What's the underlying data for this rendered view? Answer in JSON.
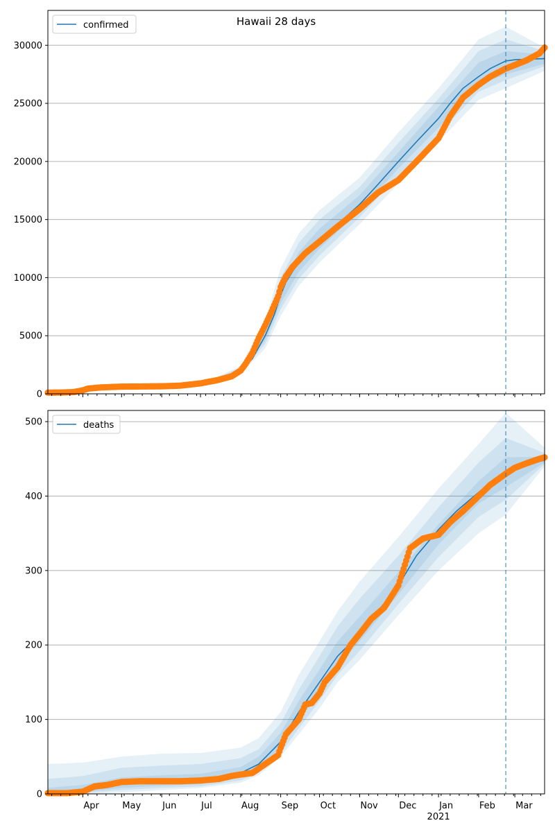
{
  "figure": {
    "title": "Hawaii 28 days"
  },
  "colors": {
    "model_line": "#1f77b4",
    "observed": "#ff7f0e",
    "band": "#1f77b4",
    "grid": "#b0b0b0",
    "forecast_marker": "#1f77b4"
  },
  "chart_data": [
    {
      "type": "line",
      "legend_label": "confirmed",
      "legend_position": "top-left",
      "grid": "horizontal",
      "ylim": [
        0,
        33000
      ],
      "yticks": [
        0,
        5000,
        10000,
        15000,
        20000,
        25000,
        30000
      ],
      "xlim": [
        "2020-03-05",
        "2021-03-24"
      ],
      "forecast_start": "2021-02-22",
      "model": {
        "x": [
          "2020-03-05",
          "2020-04-01",
          "2020-05-01",
          "2020-06-01",
          "2020-07-01",
          "2020-07-15",
          "2020-08-01",
          "2020-08-10",
          "2020-08-20",
          "2020-08-27",
          "2020-09-01",
          "2020-09-05",
          "2020-09-10",
          "2020-09-15",
          "2020-09-20",
          "2020-10-01",
          "2020-10-15",
          "2020-11-01",
          "2020-11-15",
          "2020-12-01",
          "2020-12-15",
          "2021-01-01",
          "2021-01-10",
          "2021-01-20",
          "2021-02-01",
          "2021-02-10",
          "2021-02-22",
          "2021-03-01",
          "2021-03-10",
          "2021-03-24"
        ],
        "y": [
          0,
          300,
          600,
          650,
          950,
          1300,
          2000,
          3000,
          5000,
          6800,
          8500,
          9600,
          10500,
          11300,
          12000,
          13300,
          14600,
          16300,
          18000,
          20000,
          21700,
          23700,
          25000,
          26300,
          27300,
          28000,
          28650,
          28750,
          28800,
          28850
        ]
      },
      "bands": [
        {
          "x": [
            "2020-07-15",
            "2020-08-01",
            "2020-08-20",
            "2020-09-01",
            "2020-09-15",
            "2020-10-01",
            "2020-11-01",
            "2020-12-01",
            "2021-01-01",
            "2021-02-01",
            "2021-02-22",
            "2021-03-24"
          ],
          "lower": [
            1100,
            1700,
            3900,
            6700,
            9300,
            11300,
            14600,
            18100,
            21700,
            25300,
            26300,
            27800
          ],
          "upper": [
            1500,
            2400,
            6300,
            10800,
            13800,
            15800,
            18600,
            22500,
            26300,
            30500,
            31600,
            29800
          ]
        },
        {
          "x": [
            "2020-07-15",
            "2020-08-01",
            "2020-08-20",
            "2020-09-01",
            "2020-09-15",
            "2020-10-01",
            "2020-11-01",
            "2020-12-01",
            "2021-01-01",
            "2021-02-01",
            "2021-02-22",
            "2021-03-24"
          ],
          "lower": [
            1150,
            1800,
            4300,
            7300,
            9900,
            11900,
            15200,
            18800,
            22400,
            26000,
            27000,
            28200
          ],
          "upper": [
            1450,
            2250,
            5800,
            10000,
            13000,
            15000,
            17800,
            21600,
            25400,
            29500,
            30500,
            29500
          ]
        },
        {
          "x": [
            "2020-07-15",
            "2020-08-01",
            "2020-08-20",
            "2020-09-01",
            "2020-09-15",
            "2020-10-01",
            "2020-11-01",
            "2020-12-01",
            "2021-01-01",
            "2021-02-01",
            "2021-02-22",
            "2021-03-24"
          ],
          "lower": [
            1200,
            1900,
            4600,
            7800,
            10500,
            12500,
            15700,
            19400,
            22900,
            26600,
            27500,
            28400
          ],
          "upper": [
            1400,
            2100,
            5400,
            9300,
            12200,
            14200,
            17100,
            20800,
            24700,
            28500,
            29500,
            29200
          ]
        }
      ],
      "observed": {
        "x": [
          "2020-03-05",
          "2020-03-15",
          "2020-03-25",
          "2020-04-01",
          "2020-04-05",
          "2020-04-15",
          "2020-05-01",
          "2020-05-15",
          "2020-06-01",
          "2020-06-15",
          "2020-07-01",
          "2020-07-15",
          "2020-07-25",
          "2020-08-01",
          "2020-08-05",
          "2020-08-10",
          "2020-08-15",
          "2020-08-20",
          "2020-08-25",
          "2020-08-30",
          "2020-09-01",
          "2020-09-05",
          "2020-09-10",
          "2020-09-15",
          "2020-09-20",
          "2020-10-01",
          "2020-10-15",
          "2020-11-01",
          "2020-11-15",
          "2020-12-01",
          "2020-12-15",
          "2021-01-01",
          "2021-01-10",
          "2021-01-20",
          "2021-02-01",
          "2021-02-10",
          "2021-02-22",
          "2021-03-01",
          "2021-03-10",
          "2021-03-20",
          "2021-03-24"
        ],
        "y": [
          100,
          110,
          150,
          300,
          450,
          550,
          620,
          630,
          650,
          700,
          900,
          1200,
          1500,
          2000,
          2600,
          3500,
          4800,
          5900,
          7100,
          8400,
          9200,
          10100,
          10900,
          11500,
          12100,
          13100,
          14400,
          15900,
          17300,
          18400,
          20000,
          22000,
          23900,
          25500,
          26600,
          27300,
          28000,
          28300,
          28700,
          29300,
          29800
        ]
      }
    },
    {
      "type": "line",
      "legend_label": "deaths",
      "legend_position": "top-left",
      "grid": "horizontal",
      "ylim": [
        0,
        515
      ],
      "yticks": [
        0,
        100,
        200,
        300,
        400,
        500
      ],
      "xlim": [
        "2020-03-05",
        "2021-03-24"
      ],
      "xtick_labels": [
        {
          "date": "2020-04-01",
          "label": "Apr"
        },
        {
          "date": "2020-05-01",
          "label": "May"
        },
        {
          "date": "2020-06-01",
          "label": "Jun"
        },
        {
          "date": "2020-07-01",
          "label": "Jul"
        },
        {
          "date": "2020-08-01",
          "label": "Aug"
        },
        {
          "date": "2020-09-01",
          "label": "Sep"
        },
        {
          "date": "2020-10-01",
          "label": "Oct"
        },
        {
          "date": "2020-11-01",
          "label": "Nov"
        },
        {
          "date": "2020-12-01",
          "label": "Dec"
        },
        {
          "date": "2021-01-01",
          "label": "Jan"
        },
        {
          "date": "2021-02-01",
          "label": "Feb"
        },
        {
          "date": "2021-03-01",
          "label": "Mar"
        }
      ],
      "year_label": {
        "date": "2021-01-01",
        "label": "2021"
      },
      "forecast_start": "2021-02-22",
      "model": {
        "x": [
          "2020-03-05",
          "2020-04-01",
          "2020-04-15",
          "2020-05-01",
          "2020-06-01",
          "2020-07-01",
          "2020-07-15",
          "2020-08-01",
          "2020-08-15",
          "2020-09-01",
          "2020-09-15",
          "2020-10-01",
          "2020-10-15",
          "2020-11-01",
          "2020-11-15",
          "2020-12-01",
          "2020-12-15",
          "2021-01-01",
          "2021-01-15",
          "2021-02-01",
          "2021-02-15",
          "2021-02-22",
          "2021-03-01",
          "2021-03-10",
          "2021-03-24"
        ],
        "y": [
          0,
          3,
          9,
          14,
          16,
          18,
          20,
          28,
          40,
          70,
          110,
          150,
          185,
          215,
          245,
          280,
          320,
          355,
          380,
          405,
          425,
          430,
          437,
          443,
          448
        ]
      },
      "bands": [
        {
          "x": [
            "2020-03-05",
            "2020-04-01",
            "2020-05-01",
            "2020-06-01",
            "2020-07-01",
            "2020-08-01",
            "2020-08-15",
            "2020-09-01",
            "2020-09-15",
            "2020-10-01",
            "2020-10-15",
            "2020-11-01",
            "2020-12-01",
            "2021-01-01",
            "2021-02-01",
            "2021-02-22",
            "2021-03-24"
          ],
          "lower": [
            0,
            0,
            2,
            5,
            8,
            15,
            25,
            50,
            80,
            115,
            150,
            180,
            240,
            300,
            350,
            375,
            440
          ],
          "upper": [
            40,
            42,
            50,
            54,
            55,
            62,
            75,
            110,
            160,
            205,
            245,
            285,
            345,
            410,
            470,
            512,
            465
          ]
        },
        {
          "x": [
            "2020-03-05",
            "2020-04-01",
            "2020-05-01",
            "2020-06-01",
            "2020-07-01",
            "2020-08-01",
            "2020-08-15",
            "2020-09-01",
            "2020-09-15",
            "2020-10-01",
            "2020-10-15",
            "2020-11-01",
            "2020-12-01",
            "2021-01-01",
            "2021-02-01",
            "2021-02-22",
            "2021-03-24"
          ],
          "lower": [
            0,
            1,
            5,
            8,
            10,
            18,
            28,
            55,
            88,
            125,
            160,
            192,
            255,
            318,
            372,
            395,
            443
          ],
          "upper": [
            20,
            24,
            35,
            38,
            40,
            48,
            60,
            95,
            140,
            185,
            225,
            262,
            320,
            385,
            445,
            478,
            458
          ]
        },
        {
          "x": [
            "2020-03-05",
            "2020-04-01",
            "2020-05-01",
            "2020-06-01",
            "2020-07-01",
            "2020-08-01",
            "2020-08-15",
            "2020-09-01",
            "2020-09-15",
            "2020-10-01",
            "2020-10-15",
            "2020-11-01",
            "2020-12-01",
            "2021-01-01",
            "2021-02-01",
            "2021-02-22",
            "2021-03-24"
          ],
          "lower": [
            0,
            2,
            8,
            11,
            13,
            22,
            33,
            62,
            98,
            137,
            172,
            205,
            268,
            335,
            390,
            412,
            445
          ],
          "upper": [
            8,
            12,
            22,
            25,
            27,
            36,
            50,
            82,
            125,
            167,
            205,
            238,
            298,
            362,
            420,
            452,
            453
          ]
        }
      ],
      "observed": {
        "x": [
          "2020-03-05",
          "2020-03-20",
          "2020-04-01",
          "2020-04-10",
          "2020-04-20",
          "2020-05-01",
          "2020-05-15",
          "2020-06-01",
          "2020-06-15",
          "2020-07-01",
          "2020-07-15",
          "2020-07-25",
          "2020-08-01",
          "2020-08-10",
          "2020-08-20",
          "2020-08-30",
          "2020-09-01",
          "2020-09-05",
          "2020-09-10",
          "2020-09-15",
          "2020-09-20",
          "2020-09-25",
          "2020-10-01",
          "2020-10-05",
          "2020-10-10",
          "2020-10-15",
          "2020-10-20",
          "2020-10-25",
          "2020-11-01",
          "2020-11-10",
          "2020-11-20",
          "2020-12-01",
          "2020-12-10",
          "2020-12-20",
          "2021-01-01",
          "2021-01-10",
          "2021-01-20",
          "2021-02-01",
          "2021-02-10",
          "2021-02-22",
          "2021-03-01",
          "2021-03-10",
          "2021-03-20",
          "2021-03-24"
        ],
        "y": [
          1,
          1,
          3,
          10,
          12,
          16,
          17,
          17,
          17,
          18,
          20,
          24,
          26,
          28,
          40,
          52,
          62,
          80,
          90,
          100,
          120,
          122,
          135,
          150,
          160,
          170,
          185,
          200,
          215,
          235,
          250,
          280,
          330,
          343,
          348,
          365,
          380,
          400,
          415,
          430,
          438,
          444,
          450,
          452
        ]
      }
    }
  ]
}
